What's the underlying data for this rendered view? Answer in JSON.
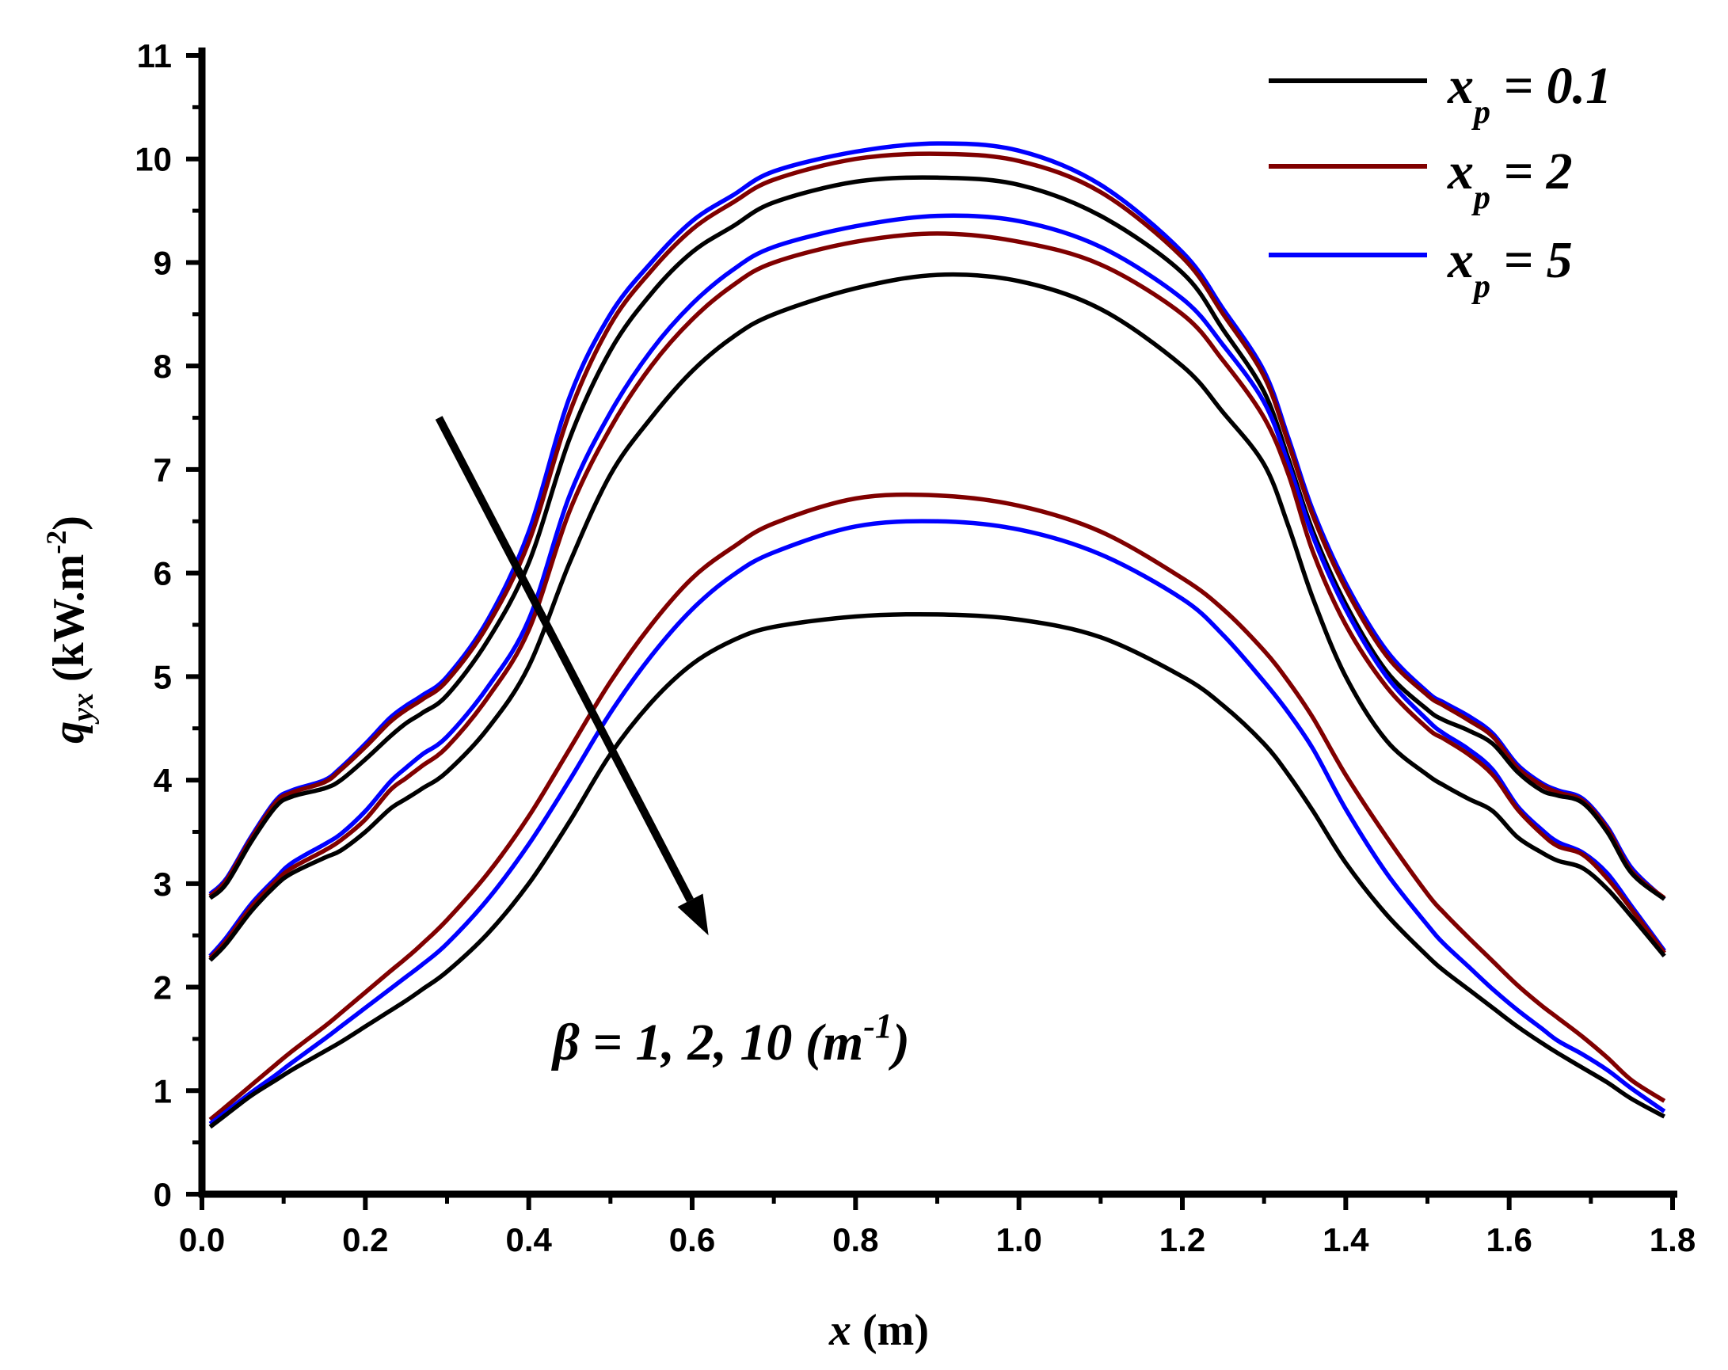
{
  "chart_data": {
    "type": "line",
    "xlabel": {
      "var": "x",
      "unit": " (m)"
    },
    "ylabel": {
      "var": "q",
      "sub": "yx",
      "unit": " (kW.m",
      "exp": "-2",
      "close": ")"
    },
    "xlim": [
      0.0,
      1.8
    ],
    "ylim": [
      0,
      11
    ],
    "xticks": [
      "0.0",
      "0.2",
      "0.4",
      "0.6",
      "0.8",
      "1.0",
      "1.2",
      "1.4",
      "1.6",
      "1.8"
    ],
    "yticks": [
      "0",
      "1",
      "2",
      "3",
      "4",
      "5",
      "6",
      "7",
      "8",
      "9",
      "10",
      "11"
    ],
    "grid": false,
    "legend_position": "top-right",
    "legend": [
      {
        "var": "x",
        "sub": "p",
        "rest": " = 0.1",
        "color": "#000000"
      },
      {
        "var": "x",
        "sub": "p",
        "rest": " = 2",
        "color": "#800000"
      },
      {
        "var": "x",
        "sub": "p",
        "rest": " = 5",
        "color": "#0000ff"
      }
    ],
    "annotation": {
      "pre": "β = 1, 2, 10 (m",
      "exp": "-1",
      "post": ")"
    },
    "arrow": {
      "from": [
        0.29,
        7.5
      ],
      "to": [
        0.62,
        2.5
      ]
    },
    "x": [
      0.01,
      0.03,
      0.06,
      0.09,
      0.11,
      0.15,
      0.17,
      0.2,
      0.23,
      0.25,
      0.27,
      0.3,
      0.35,
      0.4,
      0.45,
      0.5,
      0.55,
      0.6,
      0.65,
      0.7,
      0.8,
      0.9,
      1.0,
      1.1,
      1.2,
      1.25,
      1.3,
      1.33,
      1.36,
      1.4,
      1.45,
      1.5,
      1.52,
      1.55,
      1.58,
      1.61,
      1.64,
      1.66,
      1.69,
      1.72,
      1.75,
      1.79
    ],
    "series": [
      {
        "name": "x_p = 5, β = 1",
        "color": "#0000ff",
        "values": [
          2.9,
          3.05,
          3.45,
          3.8,
          3.9,
          4.0,
          4.12,
          4.35,
          4.6,
          4.72,
          4.82,
          5.0,
          5.55,
          6.4,
          7.7,
          8.5,
          9.0,
          9.4,
          9.65,
          9.88,
          10.07,
          10.15,
          10.08,
          9.75,
          9.1,
          8.55,
          7.95,
          7.3,
          6.6,
          5.9,
          5.25,
          4.85,
          4.75,
          4.62,
          4.45,
          4.15,
          3.97,
          3.9,
          3.82,
          3.55,
          3.15,
          2.85
        ]
      },
      {
        "name": "x_p = 2, β = 1",
        "color": "#800000",
        "values": [
          2.88,
          3.03,
          3.43,
          3.78,
          3.88,
          3.98,
          4.1,
          4.32,
          4.56,
          4.68,
          4.78,
          4.96,
          5.5,
          6.3,
          7.55,
          8.4,
          8.92,
          9.32,
          9.58,
          9.8,
          10.0,
          10.05,
          9.98,
          9.68,
          9.05,
          8.5,
          7.9,
          7.25,
          6.55,
          5.85,
          5.2,
          4.82,
          4.72,
          4.58,
          4.42,
          4.12,
          3.95,
          3.88,
          3.8,
          3.53,
          3.12,
          2.86
        ]
      },
      {
        "name": "x_p = 0.1, β = 1",
        "color": "#000000",
        "values": [
          2.86,
          3.0,
          3.4,
          3.74,
          3.84,
          3.92,
          4.0,
          4.2,
          4.42,
          4.55,
          4.65,
          4.82,
          5.35,
          6.1,
          7.3,
          8.15,
          8.7,
          9.1,
          9.35,
          9.58,
          9.78,
          9.82,
          9.75,
          9.45,
          8.9,
          8.35,
          7.75,
          7.1,
          6.4,
          5.7,
          5.05,
          4.68,
          4.58,
          4.48,
          4.35,
          4.08,
          3.9,
          3.85,
          3.78,
          3.5,
          3.1,
          2.85
        ]
      },
      {
        "name": "x_p = 5, β = 2",
        "color": "#0000ff",
        "values": [
          2.3,
          2.48,
          2.8,
          3.05,
          3.2,
          3.38,
          3.48,
          3.7,
          3.98,
          4.12,
          4.25,
          4.42,
          4.9,
          5.55,
          6.75,
          7.55,
          8.15,
          8.6,
          8.93,
          9.15,
          9.35,
          9.45,
          9.4,
          9.15,
          8.65,
          8.2,
          7.65,
          7.05,
          6.35,
          5.65,
          5.0,
          4.58,
          4.45,
          4.3,
          4.1,
          3.75,
          3.52,
          3.4,
          3.3,
          3.1,
          2.78,
          2.35
        ]
      },
      {
        "name": "x_p = 2, β = 2",
        "color": "#800000",
        "values": [
          2.28,
          2.45,
          2.77,
          3.02,
          3.15,
          3.32,
          3.42,
          3.62,
          3.9,
          4.02,
          4.14,
          4.32,
          4.8,
          5.45,
          6.6,
          7.4,
          8.0,
          8.45,
          8.78,
          9.0,
          9.2,
          9.28,
          9.2,
          8.98,
          8.5,
          8.05,
          7.5,
          6.95,
          6.2,
          5.5,
          4.9,
          4.5,
          4.4,
          4.25,
          4.05,
          3.72,
          3.48,
          3.36,
          3.28,
          3.05,
          2.75,
          2.33
        ]
      },
      {
        "name": "x_p = 0.1, β = 2",
        "color": "#000000",
        "values": [
          2.26,
          2.42,
          2.73,
          2.98,
          3.1,
          3.25,
          3.32,
          3.5,
          3.72,
          3.82,
          3.92,
          4.08,
          4.5,
          5.1,
          6.1,
          6.95,
          7.5,
          7.95,
          8.28,
          8.5,
          8.75,
          8.88,
          8.82,
          8.55,
          8.0,
          7.55,
          7.05,
          6.45,
          5.75,
          5.0,
          4.38,
          4.05,
          3.95,
          3.82,
          3.7,
          3.45,
          3.3,
          3.22,
          3.15,
          2.95,
          2.68,
          2.3
        ]
      },
      {
        "name": "x_p = 2, β = 10",
        "color": "#800000",
        "values": [
          0.72,
          0.85,
          1.05,
          1.25,
          1.38,
          1.62,
          1.75,
          1.95,
          2.15,
          2.28,
          2.42,
          2.65,
          3.1,
          3.65,
          4.3,
          4.95,
          5.5,
          5.95,
          6.25,
          6.48,
          6.72,
          6.75,
          6.65,
          6.4,
          5.95,
          5.65,
          5.25,
          4.95,
          4.6,
          4.05,
          3.45,
          2.9,
          2.72,
          2.48,
          2.25,
          2.02,
          1.82,
          1.7,
          1.52,
          1.32,
          1.1,
          0.9
        ]
      },
      {
        "name": "x_p = 5, β = 10",
        "color": "#0000ff",
        "values": [
          0.68,
          0.8,
          0.98,
          1.15,
          1.27,
          1.5,
          1.62,
          1.8,
          1.98,
          2.1,
          2.22,
          2.42,
          2.85,
          3.38,
          4.0,
          4.65,
          5.2,
          5.65,
          5.98,
          6.2,
          6.45,
          6.5,
          6.42,
          6.18,
          5.75,
          5.4,
          4.95,
          4.65,
          4.3,
          3.72,
          3.1,
          2.6,
          2.42,
          2.2,
          1.98,
          1.78,
          1.6,
          1.48,
          1.35,
          1.2,
          1.02,
          0.8
        ]
      },
      {
        "name": "x_p = 0.1, β = 10",
        "color": "#000000",
        "values": [
          0.65,
          0.77,
          0.95,
          1.1,
          1.2,
          1.38,
          1.47,
          1.62,
          1.77,
          1.87,
          1.98,
          2.15,
          2.52,
          3.0,
          3.6,
          4.25,
          4.75,
          5.12,
          5.35,
          5.48,
          5.58,
          5.6,
          5.55,
          5.38,
          5.0,
          4.72,
          4.35,
          4.05,
          3.7,
          3.2,
          2.7,
          2.3,
          2.16,
          1.98,
          1.8,
          1.62,
          1.46,
          1.36,
          1.22,
          1.08,
          0.92,
          0.75
        ]
      }
    ]
  }
}
